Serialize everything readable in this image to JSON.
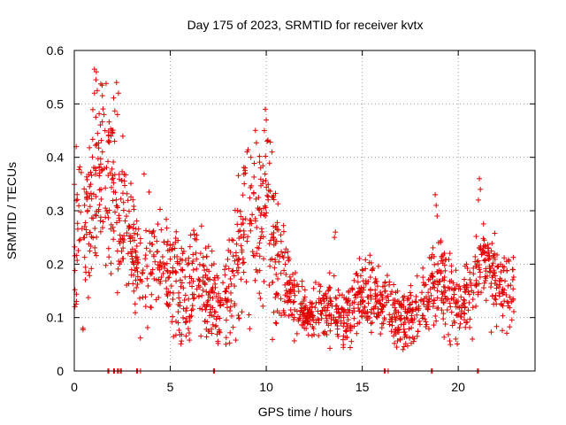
{
  "chart_data": {
    "type": "scatter",
    "title": "Day 175 of 2023, SRMTID for receiver kvtx",
    "xlabel": "GPS time / hours",
    "ylabel": "SRMTID / TECUs",
    "xlim": [
      0,
      24
    ],
    "ylim": [
      0,
      0.6
    ],
    "xticks": [
      0,
      5,
      10,
      15,
      20
    ],
    "yticks": [
      0,
      0.1,
      0.2,
      0.3,
      0.4,
      0.5,
      0.6
    ],
    "ytick_labels": [
      "0",
      "0.1",
      "0.2",
      "0.3",
      "0.4",
      "0.5",
      "0.6"
    ],
    "grid": true,
    "marker": "+",
    "color": "#e00000",
    "trend": [
      [
        0.0,
        0.25,
        0.06
      ],
      [
        0.5,
        0.27,
        0.07
      ],
      [
        1.0,
        0.34,
        0.09
      ],
      [
        1.3,
        0.4,
        0.09
      ],
      [
        1.7,
        0.35,
        0.09
      ],
      [
        2.2,
        0.32,
        0.09
      ],
      [
        2.5,
        0.3,
        0.08
      ],
      [
        3.0,
        0.24,
        0.06
      ],
      [
        3.5,
        0.18,
        0.06
      ],
      [
        4.0,
        0.22,
        0.06
      ],
      [
        4.5,
        0.19,
        0.05
      ],
      [
        5.0,
        0.18,
        0.05
      ],
      [
        5.5,
        0.15,
        0.05
      ],
      [
        6.0,
        0.16,
        0.05
      ],
      [
        6.5,
        0.17,
        0.05
      ],
      [
        7.0,
        0.15,
        0.05
      ],
      [
        7.5,
        0.12,
        0.04
      ],
      [
        8.0,
        0.13,
        0.05
      ],
      [
        8.5,
        0.2,
        0.06
      ],
      [
        9.0,
        0.28,
        0.09
      ],
      [
        9.5,
        0.25,
        0.08
      ],
      [
        10.0,
        0.3,
        0.09
      ],
      [
        10.5,
        0.22,
        0.06
      ],
      [
        11.0,
        0.17,
        0.04
      ],
      [
        11.5,
        0.13,
        0.03
      ],
      [
        12.0,
        0.1,
        0.02
      ],
      [
        12.5,
        0.11,
        0.02
      ],
      [
        13.0,
        0.11,
        0.03
      ],
      [
        13.5,
        0.12,
        0.03
      ],
      [
        14.0,
        0.1,
        0.03
      ],
      [
        14.5,
        0.13,
        0.03
      ],
      [
        15.0,
        0.14,
        0.03
      ],
      [
        15.5,
        0.15,
        0.03
      ],
      [
        16.0,
        0.13,
        0.03
      ],
      [
        16.5,
        0.12,
        0.03
      ],
      [
        17.0,
        0.1,
        0.03
      ],
      [
        17.5,
        0.11,
        0.03
      ],
      [
        18.0,
        0.12,
        0.03
      ],
      [
        18.5,
        0.15,
        0.04
      ],
      [
        19.0,
        0.17,
        0.04
      ],
      [
        19.5,
        0.14,
        0.04
      ],
      [
        20.0,
        0.12,
        0.03
      ],
      [
        20.5,
        0.13,
        0.04
      ],
      [
        21.0,
        0.2,
        0.04
      ],
      [
        21.5,
        0.2,
        0.04
      ],
      [
        22.0,
        0.17,
        0.04
      ],
      [
        22.5,
        0.15,
        0.04
      ],
      [
        22.9,
        0.16,
        0.03
      ]
    ],
    "spikes": [
      {
        "x": 1.05,
        "y": 0.565
      },
      {
        "x": 1.15,
        "y": 0.56
      },
      {
        "x": 1.05,
        "y": 0.52
      },
      {
        "x": 1.45,
        "y": 0.535
      },
      {
        "x": 1.55,
        "y": 0.48
      },
      {
        "x": 1.6,
        "y": 0.45
      },
      {
        "x": 2.2,
        "y": 0.54
      },
      {
        "x": 2.3,
        "y": 0.52
      },
      {
        "x": 2.25,
        "y": 0.48
      },
      {
        "x": 2.1,
        "y": 0.43
      },
      {
        "x": 0.1,
        "y": 0.42
      },
      {
        "x": 0.45,
        "y": 0.08
      },
      {
        "x": 9.0,
        "y": 0.41
      },
      {
        "x": 8.9,
        "y": 0.38
      },
      {
        "x": 9.2,
        "y": 0.4
      },
      {
        "x": 9.95,
        "y": 0.49
      },
      {
        "x": 10.0,
        "y": 0.47
      },
      {
        "x": 9.9,
        "y": 0.45
      },
      {
        "x": 10.05,
        "y": 0.43
      },
      {
        "x": 10.3,
        "y": 0.41
      },
      {
        "x": 7.9,
        "y": 0.05
      },
      {
        "x": 13.6,
        "y": 0.26
      },
      {
        "x": 13.55,
        "y": 0.25
      },
      {
        "x": 18.8,
        "y": 0.33
      },
      {
        "x": 18.85,
        "y": 0.31
      },
      {
        "x": 18.9,
        "y": 0.29
      },
      {
        "x": 21.1,
        "y": 0.36
      },
      {
        "x": 21.15,
        "y": 0.34
      },
      {
        "x": 21.05,
        "y": 0.32
      }
    ],
    "zero_points_x": [
      1.75,
      1.8,
      2.05,
      2.1,
      2.25,
      2.3,
      2.4,
      2.45,
      3.25,
      3.3,
      3.45,
      7.25,
      7.3,
      16.15,
      16.2,
      16.35,
      18.6,
      18.65,
      21.0,
      21.05
    ]
  }
}
